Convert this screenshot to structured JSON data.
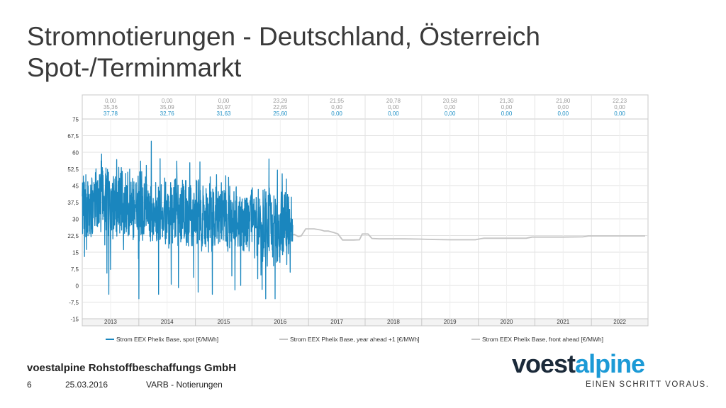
{
  "title": {
    "line1": "Stromnotierungen - Deutschland, Österreich",
    "line2": "Spot-/Terminmarkt"
  },
  "footer": {
    "company": "voestalpine Rohstoffbeschaffungs GmbH",
    "page_number": "6",
    "date": "25.03.2016",
    "section": "VARB - Notierungen"
  },
  "logo": {
    "part1": "voest",
    "part2": "alpine",
    "tagline": "EINEN SCHRITT VORAUS."
  },
  "colors": {
    "spot": "#1a86be",
    "forward": "#c4c4c4",
    "top_row": "#9a9a9a",
    "blue_row": "#1c8fc5",
    "grid": "#e2e2e2"
  },
  "chart_data": {
    "type": "line",
    "y_ticks": [
      "75",
      "67,5",
      "60",
      "52,5",
      "45",
      "37,5",
      "30",
      "22,5",
      "15",
      "7,5",
      "0",
      "-7,5",
      "-15"
    ],
    "ylim": [
      -15,
      75
    ],
    "xlim": [
      2012.5,
      2022.5
    ],
    "years": [
      "2013",
      "2014",
      "2015",
      "2016",
      "2017",
      "2018",
      "2019",
      "2020",
      "2021",
      "2022"
    ],
    "annual_table": [
      [
        "0,00",
        "35,36",
        "37,78"
      ],
      [
        "0,00",
        "35,09",
        "32,76"
      ],
      [
        "0,00",
        "30,97",
        "31,63"
      ],
      [
        "23,29",
        "22,65",
        "25,60"
      ],
      [
        "21,95",
        "0,00",
        "0,00"
      ],
      [
        "20,78",
        "0,00",
        "0,00"
      ],
      [
        "20,58",
        "0,00",
        "0,00"
      ],
      [
        "21,30",
        "0,00",
        "0,00"
      ],
      [
        "21,80",
        "0,00",
        "0,00"
      ],
      [
        "22,23",
        "0,00",
        "0,00"
      ]
    ],
    "series": [
      {
        "name": "Strom EEX Phelix Base, spot [€/MWh]",
        "style": "spot",
        "annual_means": [
          [
            2013,
            37.78
          ],
          [
            2014,
            32.76
          ],
          [
            2015,
            31.63
          ],
          [
            2016,
            25.6
          ]
        ],
        "extremes": [
          [
            2012.97,
            -4
          ],
          [
            2013.5,
            -6
          ],
          [
            2013.72,
            65
          ],
          [
            2013.85,
            -4
          ],
          [
            2014.2,
            -1
          ],
          [
            2014.55,
            -3
          ],
          [
            2014.8,
            -4
          ],
          [
            2015.2,
            -2
          ],
          [
            2015.3,
            0
          ],
          [
            2015.6,
            3
          ],
          [
            2015.8,
            57
          ],
          [
            2015.95,
            52
          ],
          [
            2016.05,
            35
          ],
          [
            2016.2,
            28
          ],
          [
            2016.2,
            20
          ]
        ],
        "end": 2016.22
      },
      {
        "name": "Strom EEX Phelix Base, year ahead +1 [€/MWh]",
        "style": "forward",
        "points": [
          [
            2016.05,
            26.5
          ],
          [
            2016.1,
            23
          ],
          [
            2016.18,
            22.7
          ],
          [
            2016.25,
            23
          ],
          [
            2016.32,
            22
          ],
          [
            2016.37,
            22.3
          ],
          [
            2016.45,
            25.5
          ],
          [
            2016.6,
            25.5
          ],
          [
            2016.72,
            25
          ],
          [
            2016.78,
            24.5
          ],
          [
            2016.85,
            24.5
          ],
          [
            2016.95,
            23.8
          ],
          [
            2017.02,
            23.2
          ],
          [
            2017.1,
            20.5
          ],
          [
            2017.2,
            20.5
          ],
          [
            2017.3,
            20.5
          ],
          [
            2017.4,
            20.6
          ],
          [
            2017.45,
            23.2
          ],
          [
            2017.55,
            23.2
          ],
          [
            2017.62,
            21.2
          ],
          [
            2017.75,
            21
          ],
          [
            2018.0,
            21
          ],
          [
            2018.2,
            21
          ],
          [
            2018.45,
            20.9
          ],
          [
            2018.7,
            20.7
          ],
          [
            2019.0,
            20.6
          ],
          [
            2019.2,
            20.6
          ],
          [
            2019.45,
            20.6
          ],
          [
            2019.55,
            21.1
          ],
          [
            2019.6,
            21.3
          ],
          [
            2020.0,
            21.3
          ],
          [
            2020.35,
            21.3
          ],
          [
            2020.45,
            21.8
          ],
          [
            2020.5,
            21.8
          ],
          [
            2021.0,
            21.8
          ],
          [
            2021.35,
            21.9
          ],
          [
            2021.45,
            22.3
          ],
          [
            2022.0,
            22.3
          ],
          [
            2022.45,
            22.3
          ]
        ]
      },
      {
        "name": "Strom EEX Phelix Base, front ahead [€/MWh]",
        "style": "forward",
        "points": []
      }
    ]
  }
}
